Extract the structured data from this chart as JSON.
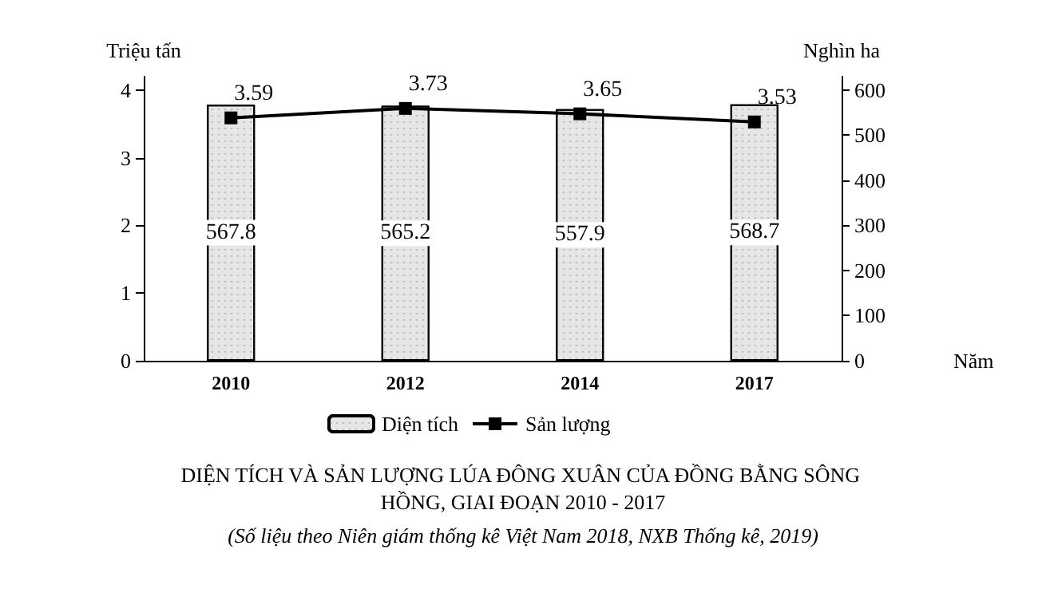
{
  "chart_data": {
    "type": "bar",
    "title": "DIỆN TÍCH VÀ SẢN LƯỢNG LÚA ĐÔNG XUÂN CỦA ĐỒNG BẰNG SÔNG HỒNG, GIAI ĐOẠN 2010 - 2017",
    "subtitle": "(Số liệu theo Niên giám thống kê Việt Nam 2018, NXB Thống kê, 2019)",
    "xlabel": "Năm",
    "ylabel": "Triệu tấn",
    "y2label": "Nghìn ha",
    "categories": [
      "2010",
      "2012",
      "2014",
      "2017"
    ],
    "series": [
      {
        "name": "Diện tích",
        "axis": "y2",
        "color": "#e6e6e6",
        "values": [
          567.8,
          565.2,
          557.9,
          568.7
        ]
      },
      {
        "name": "Sản lượng",
        "type": "line",
        "color": "#000000",
        "marker": "square",
        "values": [
          3.59,
          3.73,
          3.65,
          3.53
        ]
      }
    ],
    "data_labels": true,
    "ylim": [
      0,
      4.2
    ],
    "yticks": [
      0,
      1,
      2,
      3,
      4
    ],
    "y2lim": [
      0,
      630
    ],
    "y2ticks": [
      0,
      100,
      200,
      300,
      400,
      500,
      600
    ],
    "grid": false,
    "legend": "bottom"
  }
}
